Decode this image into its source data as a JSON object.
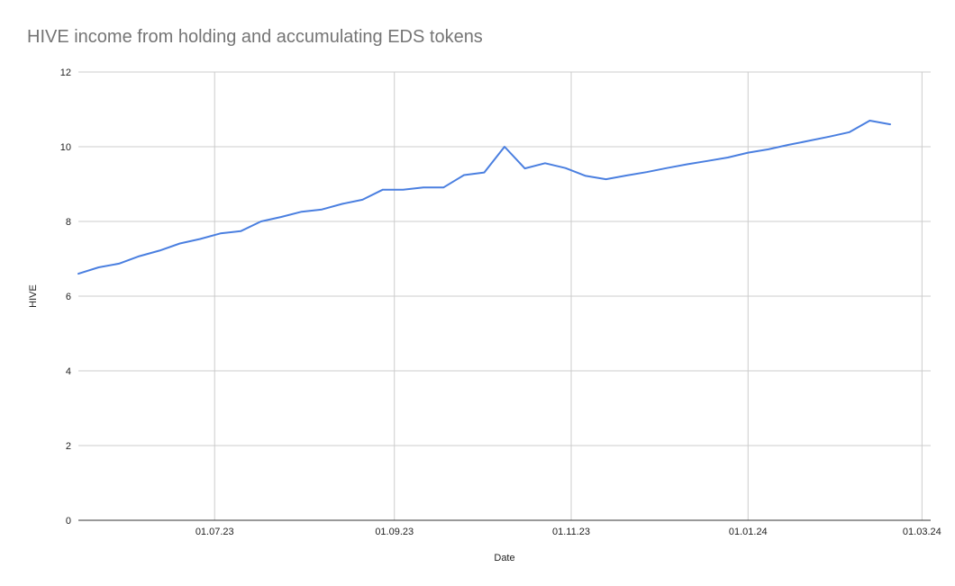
{
  "chart_data": {
    "type": "line",
    "title": "HIVE income from holding and accumulating EDS tokens",
    "xlabel": "Date",
    "ylabel": "HIVE",
    "ylim": [
      0,
      12
    ],
    "yticks": [
      0,
      2,
      4,
      6,
      8,
      10,
      12
    ],
    "xlim": [
      "2023-05-15",
      "2024-03-04"
    ],
    "xticks": [
      {
        "date": "2023-07-01",
        "label": "01.07.23"
      },
      {
        "date": "2023-09-01",
        "label": "01.09.23"
      },
      {
        "date": "2023-11-01",
        "label": "01.11.23"
      },
      {
        "date": "2024-01-01",
        "label": "01.01.24"
      },
      {
        "date": "2024-03-01",
        "label": "01.03.24"
      }
    ],
    "grid": true,
    "legend": "none",
    "series": [
      {
        "color": "#4a7fe0",
        "points": [
          [
            "2023-05-15",
            6.6
          ],
          [
            "2023-05-22",
            6.77
          ],
          [
            "2023-05-29",
            6.87
          ],
          [
            "2023-06-05",
            7.07
          ],
          [
            "2023-06-12",
            7.22
          ],
          [
            "2023-06-19",
            7.41
          ],
          [
            "2023-06-26",
            7.53
          ],
          [
            "2023-07-03",
            7.68
          ],
          [
            "2023-07-10",
            7.74
          ],
          [
            "2023-07-17",
            8.0
          ],
          [
            "2023-07-24",
            8.12
          ],
          [
            "2023-07-31",
            8.26
          ],
          [
            "2023-08-07",
            8.32
          ],
          [
            "2023-08-14",
            8.47
          ],
          [
            "2023-08-21",
            8.58
          ],
          [
            "2023-08-28",
            8.85
          ],
          [
            "2023-09-04",
            8.85
          ],
          [
            "2023-09-11",
            8.91
          ],
          [
            "2023-09-18",
            8.91
          ],
          [
            "2023-09-25",
            9.24
          ],
          [
            "2023-10-02",
            9.31
          ],
          [
            "2023-10-09",
            10.0
          ],
          [
            "2023-10-16",
            9.42
          ],
          [
            "2023-10-23",
            9.56
          ],
          [
            "2023-10-30",
            9.43
          ],
          [
            "2023-11-06",
            9.22
          ],
          [
            "2023-11-13",
            9.13
          ],
          [
            "2023-11-20",
            9.23
          ],
          [
            "2023-11-27",
            9.32
          ],
          [
            "2023-12-04",
            9.43
          ],
          [
            "2023-12-11",
            9.53
          ],
          [
            "2023-12-18",
            9.62
          ],
          [
            "2023-12-25",
            9.71
          ],
          [
            "2024-01-01",
            9.84
          ],
          [
            "2024-01-08",
            9.93
          ],
          [
            "2024-01-15",
            10.05
          ],
          [
            "2024-01-22",
            10.16
          ],
          [
            "2024-01-29",
            10.27
          ],
          [
            "2024-02-05",
            10.39
          ],
          [
            "2024-02-12",
            10.7
          ],
          [
            "2024-02-19",
            10.6
          ]
        ]
      }
    ]
  }
}
